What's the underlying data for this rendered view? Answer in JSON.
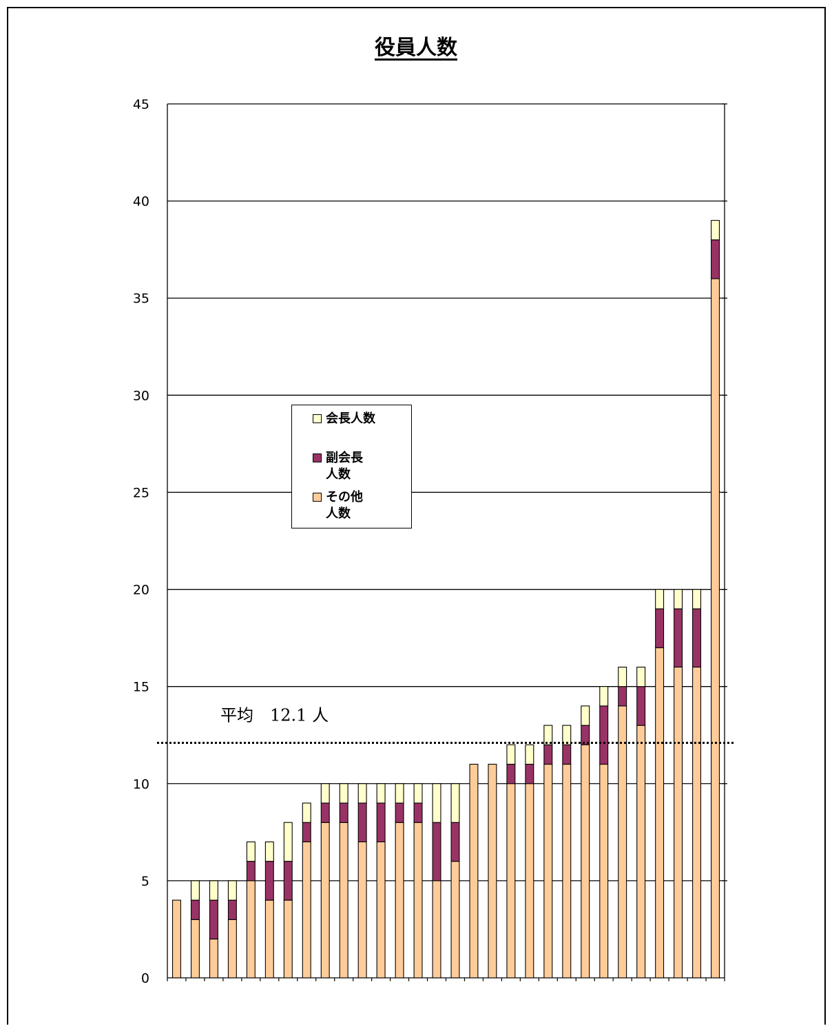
{
  "chart_data": {
    "type": "bar",
    "stacked": true,
    "title": "役員人数",
    "ylim": [
      0,
      45
    ],
    "yticks": [
      0,
      5,
      10,
      15,
      20,
      25,
      30,
      35,
      40,
      45
    ],
    "grid": true,
    "legend_position": "center-left",
    "series": [
      {
        "name": "その他\n人数",
        "color": "#FFCC99",
        "values": [
          4,
          3,
          2,
          3,
          5,
          4,
          4,
          7,
          8,
          8,
          7,
          7,
          8,
          8,
          5,
          6,
          11,
          11,
          10,
          10,
          11,
          11,
          12,
          11,
          14,
          13,
          17,
          16,
          16,
          36
        ]
      },
      {
        "name": "副会長\n人数",
        "color": "#993366",
        "values": [
          0,
          1,
          2,
          1,
          1,
          2,
          2,
          1,
          1,
          1,
          2,
          2,
          1,
          1,
          3,
          2,
          0,
          0,
          1,
          1,
          1,
          1,
          1,
          3,
          1,
          2,
          2,
          3,
          3,
          2
        ]
      },
      {
        "name": "会長人数",
        "color": "#FFFFCC",
        "values": [
          0,
          1,
          1,
          1,
          1,
          1,
          2,
          1,
          1,
          1,
          1,
          1,
          1,
          1,
          2,
          2,
          0,
          0,
          1,
          1,
          1,
          1,
          1,
          1,
          1,
          1,
          1,
          1,
          1,
          1
        ]
      }
    ],
    "legend_order": [
      2,
      1,
      0
    ],
    "annotation": {
      "label": "平均　12.1 人",
      "value": 12.1
    }
  }
}
